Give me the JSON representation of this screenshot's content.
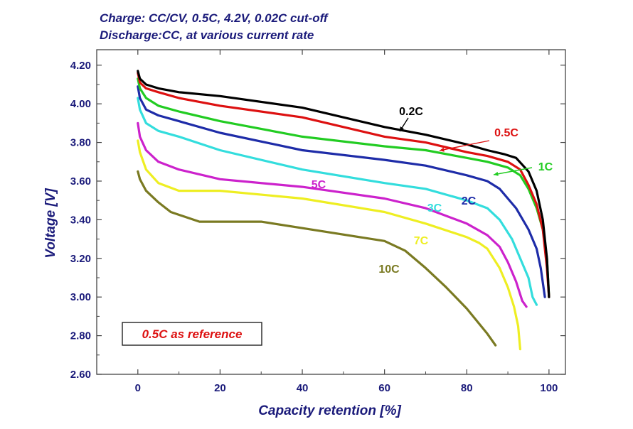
{
  "chart_data": {
    "type": "line",
    "title_lines": [
      "Charge: CC/CV, 0.5C, 4.2V, 0.02C cut-off",
      "Discharge:CC, at various current rate"
    ],
    "xlabel": "Capacity retention [%]",
    "ylabel": "Voltage [V]",
    "xlim": [
      -10,
      104
    ],
    "ylim": [
      2.6,
      4.28
    ],
    "xticks": [
      0,
      20,
      40,
      60,
      80,
      100
    ],
    "yticks": [
      2.6,
      2.8,
      3.0,
      3.2,
      3.4,
      3.6,
      3.8,
      4.0,
      4.2
    ],
    "xtick_labels": [
      "0",
      "20",
      "40",
      "60",
      "80",
      "100"
    ],
    "ytick_labels": [
      "2.60",
      "2.80",
      "3.00",
      "3.20",
      "3.40",
      "3.60",
      "3.80",
      "4.00",
      "4.20"
    ],
    "grid": false,
    "annotation_box": "0.5C as reference",
    "series": [
      {
        "name": "0.2C",
        "color": "#000000",
        "points": [
          [
            0,
            4.17
          ],
          [
            0.5,
            4.13
          ],
          [
            2,
            4.1
          ],
          [
            5,
            4.08
          ],
          [
            10,
            4.06
          ],
          [
            20,
            4.04
          ],
          [
            40,
            3.98
          ],
          [
            60,
            3.88
          ],
          [
            70,
            3.84
          ],
          [
            80,
            3.79
          ],
          [
            85,
            3.76
          ],
          [
            89,
            3.74
          ],
          [
            92,
            3.72
          ],
          [
            95,
            3.65
          ],
          [
            97,
            3.55
          ],
          [
            98.5,
            3.4
          ],
          [
            99.5,
            3.2
          ],
          [
            100,
            3.0
          ]
        ]
      },
      {
        "name": "0.5C",
        "color": "#dd1111",
        "points": [
          [
            0,
            4.16
          ],
          [
            0.5,
            4.11
          ],
          [
            2,
            4.08
          ],
          [
            5,
            4.06
          ],
          [
            10,
            4.03
          ],
          [
            20,
            3.99
          ],
          [
            40,
            3.93
          ],
          [
            60,
            3.83
          ],
          [
            70,
            3.8
          ],
          [
            80,
            3.75
          ],
          [
            85,
            3.73
          ],
          [
            90,
            3.7
          ],
          [
            93,
            3.66
          ],
          [
            95,
            3.58
          ],
          [
            97,
            3.48
          ],
          [
            98.5,
            3.35
          ],
          [
            99.5,
            3.15
          ],
          [
            100,
            3.0
          ]
        ]
      },
      {
        "name": "1C",
        "color": "#22cc22",
        "points": [
          [
            0,
            4.13
          ],
          [
            0.5,
            4.08
          ],
          [
            2,
            4.03
          ],
          [
            5,
            3.99
          ],
          [
            10,
            3.96
          ],
          [
            20,
            3.91
          ],
          [
            40,
            3.83
          ],
          [
            60,
            3.78
          ],
          [
            70,
            3.76
          ],
          [
            80,
            3.72
          ],
          [
            85,
            3.7
          ],
          [
            90,
            3.67
          ],
          [
            93,
            3.63
          ],
          [
            95,
            3.56
          ],
          [
            97,
            3.46
          ],
          [
            98.5,
            3.35
          ],
          [
            99.5,
            3.2
          ],
          [
            100,
            3.0
          ]
        ]
      },
      {
        "name": "2C",
        "color": "#1e2ca8",
        "points": [
          [
            0,
            4.09
          ],
          [
            0.5,
            4.03
          ],
          [
            2,
            3.97
          ],
          [
            5,
            3.94
          ],
          [
            10,
            3.91
          ],
          [
            20,
            3.85
          ],
          [
            40,
            3.76
          ],
          [
            60,
            3.71
          ],
          [
            70,
            3.68
          ],
          [
            80,
            3.63
          ],
          [
            85,
            3.6
          ],
          [
            88,
            3.56
          ],
          [
            92,
            3.46
          ],
          [
            95,
            3.35
          ],
          [
            97,
            3.25
          ],
          [
            98,
            3.15
          ],
          [
            99,
            3.0
          ]
        ]
      },
      {
        "name": "3C",
        "color": "#33dddd",
        "points": [
          [
            0,
            4.03
          ],
          [
            0.5,
            3.97
          ],
          [
            2,
            3.9
          ],
          [
            5,
            3.86
          ],
          [
            10,
            3.83
          ],
          [
            20,
            3.76
          ],
          [
            40,
            3.66
          ],
          [
            60,
            3.59
          ],
          [
            70,
            3.56
          ],
          [
            80,
            3.5
          ],
          [
            85,
            3.46
          ],
          [
            88,
            3.4
          ],
          [
            91,
            3.3
          ],
          [
            93,
            3.2
          ],
          [
            95,
            3.1
          ],
          [
            96,
            3.0
          ],
          [
            97,
            2.96
          ]
        ]
      },
      {
        "name": "5C",
        "color": "#cc22cc",
        "points": [
          [
            0,
            3.9
          ],
          [
            0.5,
            3.83
          ],
          [
            2,
            3.76
          ],
          [
            5,
            3.7
          ],
          [
            10,
            3.66
          ],
          [
            20,
            3.61
          ],
          [
            40,
            3.57
          ],
          [
            60,
            3.51
          ],
          [
            70,
            3.46
          ],
          [
            80,
            3.38
          ],
          [
            85,
            3.32
          ],
          [
            88,
            3.26
          ],
          [
            90,
            3.18
          ],
          [
            92,
            3.08
          ],
          [
            93.5,
            2.98
          ],
          [
            94.5,
            2.95
          ]
        ]
      },
      {
        "name": "7C",
        "color": "#eeee22",
        "points": [
          [
            0,
            3.81
          ],
          [
            0.5,
            3.75
          ],
          [
            2,
            3.66
          ],
          [
            5,
            3.59
          ],
          [
            10,
            3.55
          ],
          [
            20,
            3.55
          ],
          [
            40,
            3.51
          ],
          [
            60,
            3.44
          ],
          [
            70,
            3.38
          ],
          [
            80,
            3.31
          ],
          [
            83,
            3.28
          ],
          [
            85,
            3.25
          ],
          [
            88,
            3.15
          ],
          [
            90,
            3.05
          ],
          [
            91.5,
            2.95
          ],
          [
            92.5,
            2.85
          ],
          [
            93,
            2.73
          ]
        ]
      },
      {
        "name": "10C",
        "color": "#7a7a22",
        "points": [
          [
            0,
            3.65
          ],
          [
            0.5,
            3.61
          ],
          [
            2,
            3.55
          ],
          [
            5,
            3.49
          ],
          [
            8,
            3.44
          ],
          [
            15,
            3.39
          ],
          [
            30,
            3.39
          ],
          [
            45,
            3.34
          ],
          [
            60,
            3.29
          ],
          [
            65,
            3.24
          ],
          [
            70,
            3.15
          ],
          [
            75,
            3.05
          ],
          [
            80,
            2.94
          ],
          [
            85,
            2.81
          ],
          [
            87,
            2.75
          ]
        ]
      }
    ],
    "series_label_text": [
      "0.2C",
      "0.5C",
      "1C",
      "2C",
      "3C",
      "5C",
      "7C",
      "10C"
    ]
  }
}
